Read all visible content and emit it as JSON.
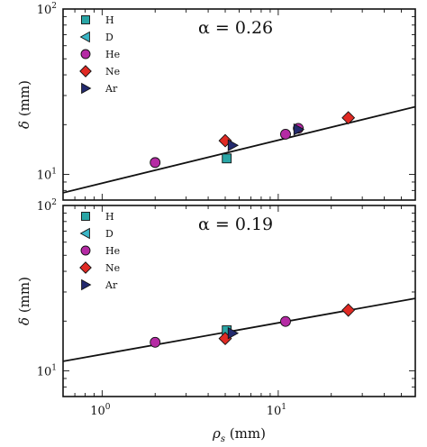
{
  "colors": {
    "H": "#2aa6a6",
    "D": "#3bb6c6",
    "He": "#b52aa4",
    "Ne": "#e02a24",
    "Ar": "#232a6e",
    "fit_line": "#111111"
  },
  "chart_data": [
    {
      "type": "scatter",
      "panel": "top",
      "xscale": "log",
      "yscale": "log",
      "xlim": [
        0.6,
        60
      ],
      "ylim": [
        7,
        100
      ],
      "xticks": [
        {
          "mantissa": "10",
          "exp": "0"
        },
        {
          "mantissa": "10",
          "exp": "1"
        }
      ],
      "yticks": [
        {
          "mantissa": "10",
          "exp": "1"
        },
        {
          "mantissa": "10",
          "exp": "2"
        }
      ],
      "ylabel": {
        "symbol": "δ",
        "unit": " (mm)"
      },
      "xlabel": {
        "symbol": "ρ",
        "sub": "s",
        "unit": " (mm)"
      },
      "annotation": "α = 0.26",
      "legend_position": "top-left",
      "legend": [
        {
          "label": "H",
          "marker": "square",
          "color_key": "H"
        },
        {
          "label": "D",
          "marker": "triangle-left",
          "color_key": "D"
        },
        {
          "label": "He",
          "marker": "circle",
          "color_key": "He"
        },
        {
          "label": "Ne",
          "marker": "diamond",
          "color_key": "Ne"
        },
        {
          "label": "Ar",
          "marker": "triangle-right",
          "color_key": "Ar"
        }
      ],
      "series": [
        {
          "name": "H",
          "marker": "square",
          "color_key": "H",
          "points": [
            [
              5.1,
              12.5
            ]
          ]
        },
        {
          "name": "D",
          "marker": "triangle-left",
          "color_key": "D",
          "points": []
        },
        {
          "name": "He",
          "marker": "circle",
          "color_key": "He",
          "points": [
            [
              2.0,
              11.8
            ],
            [
              11.0,
              17.5
            ],
            [
              13.0,
              19.0
            ]
          ]
        },
        {
          "name": "Ne",
          "marker": "diamond",
          "color_key": "Ne",
          "points": [
            [
              5.0,
              16.0
            ],
            [
              25.0,
              22.0
            ]
          ]
        },
        {
          "name": "Ar",
          "marker": "triangle-right",
          "color_key": "Ar",
          "points": [
            [
              5.5,
              15.0
            ],
            [
              13.0,
              18.7
            ]
          ]
        }
      ],
      "fit": {
        "exponent": 0.26,
        "prefactor": 8.85
      }
    },
    {
      "type": "scatter",
      "panel": "bottom",
      "xscale": "log",
      "yscale": "log",
      "xlim": [
        0.6,
        60
      ],
      "ylim": [
        7,
        100
      ],
      "xticks": [
        {
          "mantissa": "10",
          "exp": "0"
        },
        {
          "mantissa": "10",
          "exp": "1"
        }
      ],
      "yticks": [
        {
          "mantissa": "10",
          "exp": "1"
        },
        {
          "mantissa": "10",
          "exp": "2"
        }
      ],
      "ylabel": {
        "symbol": "δ",
        "unit": " (mm)"
      },
      "xlabel": {
        "symbol": "ρ",
        "sub": "s",
        "unit": " (mm)"
      },
      "annotation": "α = 0.19",
      "legend_position": "top-left",
      "legend": [
        {
          "label": "H",
          "marker": "square",
          "color_key": "H"
        },
        {
          "label": "D",
          "marker": "triangle-left",
          "color_key": "D"
        },
        {
          "label": "He",
          "marker": "circle",
          "color_key": "He"
        },
        {
          "label": "Ne",
          "marker": "diamond",
          "color_key": "Ne"
        },
        {
          "label": "Ar",
          "marker": "triangle-right",
          "color_key": "Ar"
        }
      ],
      "series": [
        {
          "name": "H",
          "marker": "square",
          "color_key": "H",
          "points": [
            [
              5.1,
              17.6
            ]
          ]
        },
        {
          "name": "D",
          "marker": "triangle-left",
          "color_key": "D",
          "points": []
        },
        {
          "name": "He",
          "marker": "circle",
          "color_key": "He",
          "points": [
            [
              2.0,
              14.9
            ],
            [
              11.0,
              19.9
            ]
          ]
        },
        {
          "name": "Ne",
          "marker": "diamond",
          "color_key": "Ne",
          "points": [
            [
              5.0,
              15.7
            ],
            [
              25.0,
              23.3
            ]
          ]
        },
        {
          "name": "Ar",
          "marker": "triangle-right",
          "color_key": "Ar",
          "points": [
            [
              5.5,
              16.9
            ]
          ]
        }
      ],
      "fit": {
        "exponent": 0.19,
        "prefactor": 12.6
      }
    }
  ]
}
